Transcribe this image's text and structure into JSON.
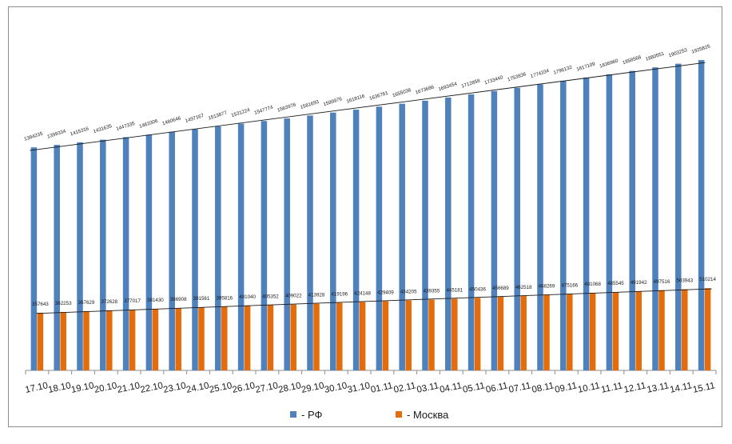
{
  "colors": {
    "rf": "#4f81bd",
    "moscow": "#e46c0a",
    "trend": "#1a1a1a",
    "axis": "#8c8c8c"
  },
  "legend": {
    "rf_label": "- РФ",
    "moscow_label": "- Москва"
  },
  "chart_data": {
    "type": "bar",
    "categories": [
      "17.10",
      "18.10",
      "19.10",
      "20.10",
      "21.10",
      "22.10",
      "23.10",
      "24.10",
      "25.10",
      "26.10",
      "27.10",
      "28.10",
      "29.10",
      "30.10",
      "31.10",
      "01.11",
      "02.11",
      "03.11",
      "04.11",
      "05.11",
      "06.11",
      "07.11",
      "08.11",
      "09.11",
      "10.11",
      "11.11",
      "12.11",
      "13.11",
      "14.11",
      "15.11"
    ],
    "series": [
      {
        "name": "- РФ",
        "color": "#4f81bd",
        "values": [
          1384235,
          1399334,
          1415316,
          1431635,
          1447335,
          1463306,
          1480646,
          1497167,
          1513877,
          1531224,
          1547774,
          1563976,
          1581693,
          1599976,
          1618116,
          1636781,
          1655038,
          1673686,
          1693454,
          1712858,
          1733440,
          1753836,
          1774334,
          1796132,
          1817109,
          1836960,
          1858568,
          1880551,
          1903253,
          1925825
        ]
      },
      {
        "name": "- Москва",
        "color": "#e46c0a",
        "values": [
          357643,
          362253,
          367629,
          372628,
          377017,
          381430,
          386908,
          391561,
          395816,
          401040,
          405352,
          409022,
          413928,
          419196,
          424148,
          429409,
          434205,
          439355,
          445181,
          450436,
          456689,
          462518,
          468269,
          475166,
          481068,
          485545,
          491942,
          497516,
          503943,
          510214
        ]
      }
    ],
    "data_labels": true,
    "trendlines": "linear",
    "grid": false,
    "legend_position": "bottom",
    "ylim": [
      0,
      2100000
    ]
  }
}
